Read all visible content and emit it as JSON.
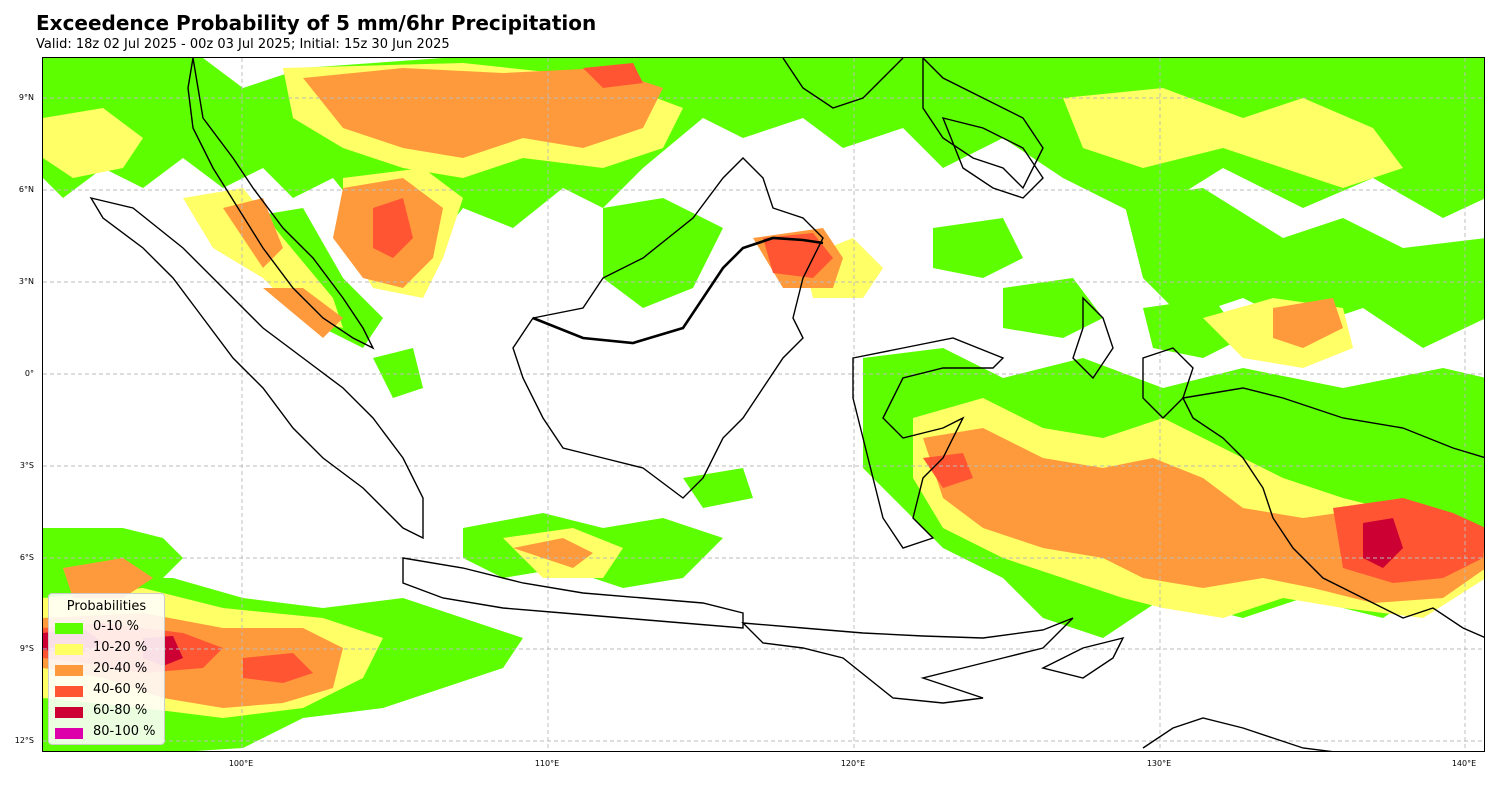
{
  "header": {
    "title": "Exceedence Probability of 5 mm/6hr Precipitation",
    "subtitle": "Valid: 18z 02 Jul 2025 - 00z 03 Jul 2025; Initial: 15z 30 Jun 2025"
  },
  "map": {
    "region": "Indonesia",
    "gridlines": true,
    "lat_labels": [
      "9°N",
      "6°N",
      "3°N",
      "0°",
      "3°S",
      "6°S",
      "9°S",
      "12°S"
    ],
    "lon_labels": [
      "100°E",
      "110°E",
      "120°E",
      "130°E",
      "140°E"
    ],
    "background_color": "#ffffff",
    "coastline_color": "#000000"
  },
  "legend": {
    "title": "Probabilities",
    "placement": "bottom-left",
    "items": [
      {
        "label": "0-10 %",
        "color": "#5dff00"
      },
      {
        "label": "10-20 %",
        "color": "#ffff66"
      },
      {
        "label": "20-40 %",
        "color": "#ff9a3c"
      },
      {
        "label": "40-60 %",
        "color": "#ff5533"
      },
      {
        "label": "60-80 %",
        "color": "#cc0033"
      },
      {
        "label": "80-100 %",
        "color": "#dd00aa"
      }
    ]
  }
}
